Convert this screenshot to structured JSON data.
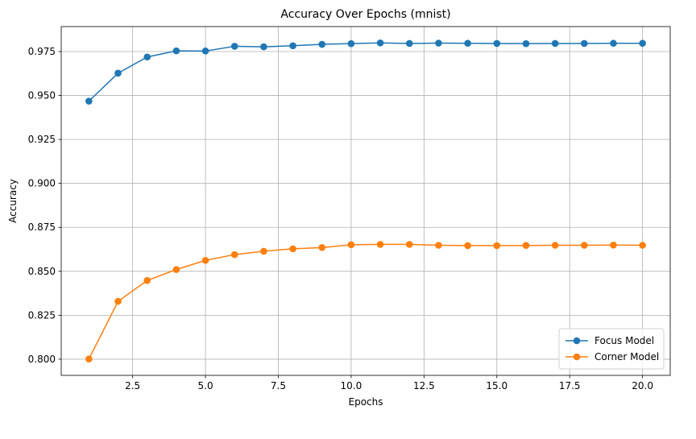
{
  "chart_data": {
    "type": "line",
    "title": "Accuracy Over Epochs (mnist)",
    "xlabel": "Epochs",
    "ylabel": "Accuracy",
    "xlim": [
      0.05,
      20.95
    ],
    "ylim": [
      0.7908,
      0.9892
    ],
    "xticks": [
      2.5,
      5.0,
      7.5,
      10.0,
      12.5,
      15.0,
      17.5,
      20.0
    ],
    "xtick_labels": [
      "2.5",
      "5.0",
      "7.5",
      "10.0",
      "12.5",
      "15.0",
      "17.5",
      "20.0"
    ],
    "yticks": [
      0.8,
      0.825,
      0.85,
      0.875,
      0.9,
      0.925,
      0.95,
      0.975
    ],
    "ytick_labels": [
      "0.800",
      "0.825",
      "0.850",
      "0.875",
      "0.900",
      "0.925",
      "0.950",
      "0.975"
    ],
    "grid": true,
    "legend_position": "bottom-right",
    "x": [
      1,
      2,
      3,
      4,
      5,
      6,
      7,
      8,
      9,
      10,
      11,
      12,
      13,
      14,
      15,
      16,
      17,
      18,
      19,
      20
    ],
    "series": [
      {
        "name": "Focus Model",
        "color": "#1f77b4",
        "values": [
          0.9468,
          0.9627,
          0.9719,
          0.9754,
          0.9753,
          0.978,
          0.9777,
          0.9783,
          0.9791,
          0.9795,
          0.9799,
          0.9796,
          0.9798,
          0.9797,
          0.9796,
          0.9795,
          0.9796,
          0.9796,
          0.9797,
          0.9797
        ]
      },
      {
        "name": "Corner Model",
        "color": "#ff7f0e",
        "values": [
          0.8001,
          0.8329,
          0.8448,
          0.851,
          0.8562,
          0.8595,
          0.8614,
          0.8628,
          0.8635,
          0.8651,
          0.8653,
          0.8653,
          0.8648,
          0.8646,
          0.8646,
          0.8647,
          0.8648,
          0.8648,
          0.8649,
          0.8648
        ]
      }
    ]
  }
}
